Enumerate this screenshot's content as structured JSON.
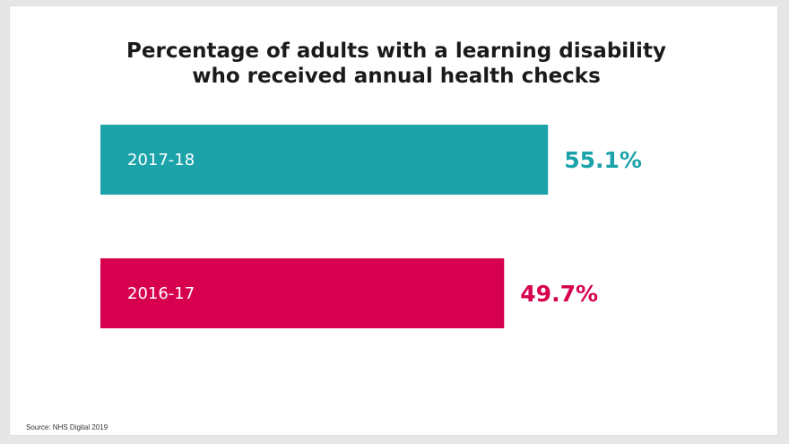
{
  "chart_data": {
    "type": "bar",
    "orientation": "horizontal",
    "title_lines": [
      "Percentage of adults with a learning disability",
      "who received annual health checks"
    ],
    "categories": [
      "2017-18",
      "2016-17"
    ],
    "values": [
      55.1,
      49.7
    ],
    "value_labels": [
      "55.1%",
      "49.7%"
    ],
    "colors": [
      "#1ba3a9",
      "#d6004f"
    ],
    "xlim": [
      0,
      100
    ],
    "grid": false,
    "xlabel": "",
    "ylabel": ""
  },
  "source": "Source: NHS Digital 2019"
}
